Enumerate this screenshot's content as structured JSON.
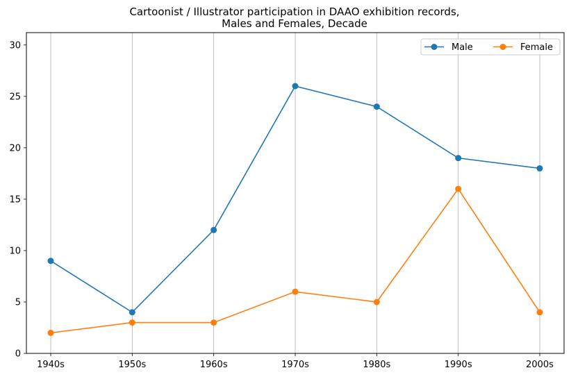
{
  "chart_data": {
    "type": "line",
    "title_lines": [
      "Cartoonist / Illustrator participation in DAAO exhibition records,",
      "Males and Females, Decade"
    ],
    "xlabel": "",
    "ylabel": "",
    "categories": [
      "1940s",
      "1950s",
      "1960s",
      "1970s",
      "1980s",
      "1990s",
      "2000s"
    ],
    "series": [
      {
        "name": "Male",
        "color": "#1f77b4",
        "values": [
          9,
          4,
          12,
          26,
          24,
          19,
          18
        ]
      },
      {
        "name": "Female",
        "color": "#ff7f0e",
        "values": [
          2,
          3,
          3,
          6,
          5,
          16,
          4
        ]
      }
    ],
    "ylim": [
      0,
      31.2
    ],
    "yticks": [
      0,
      5,
      10,
      15,
      20,
      25,
      30
    ],
    "grid": "vertical",
    "legend_position": "top-right",
    "marker": "circle"
  }
}
